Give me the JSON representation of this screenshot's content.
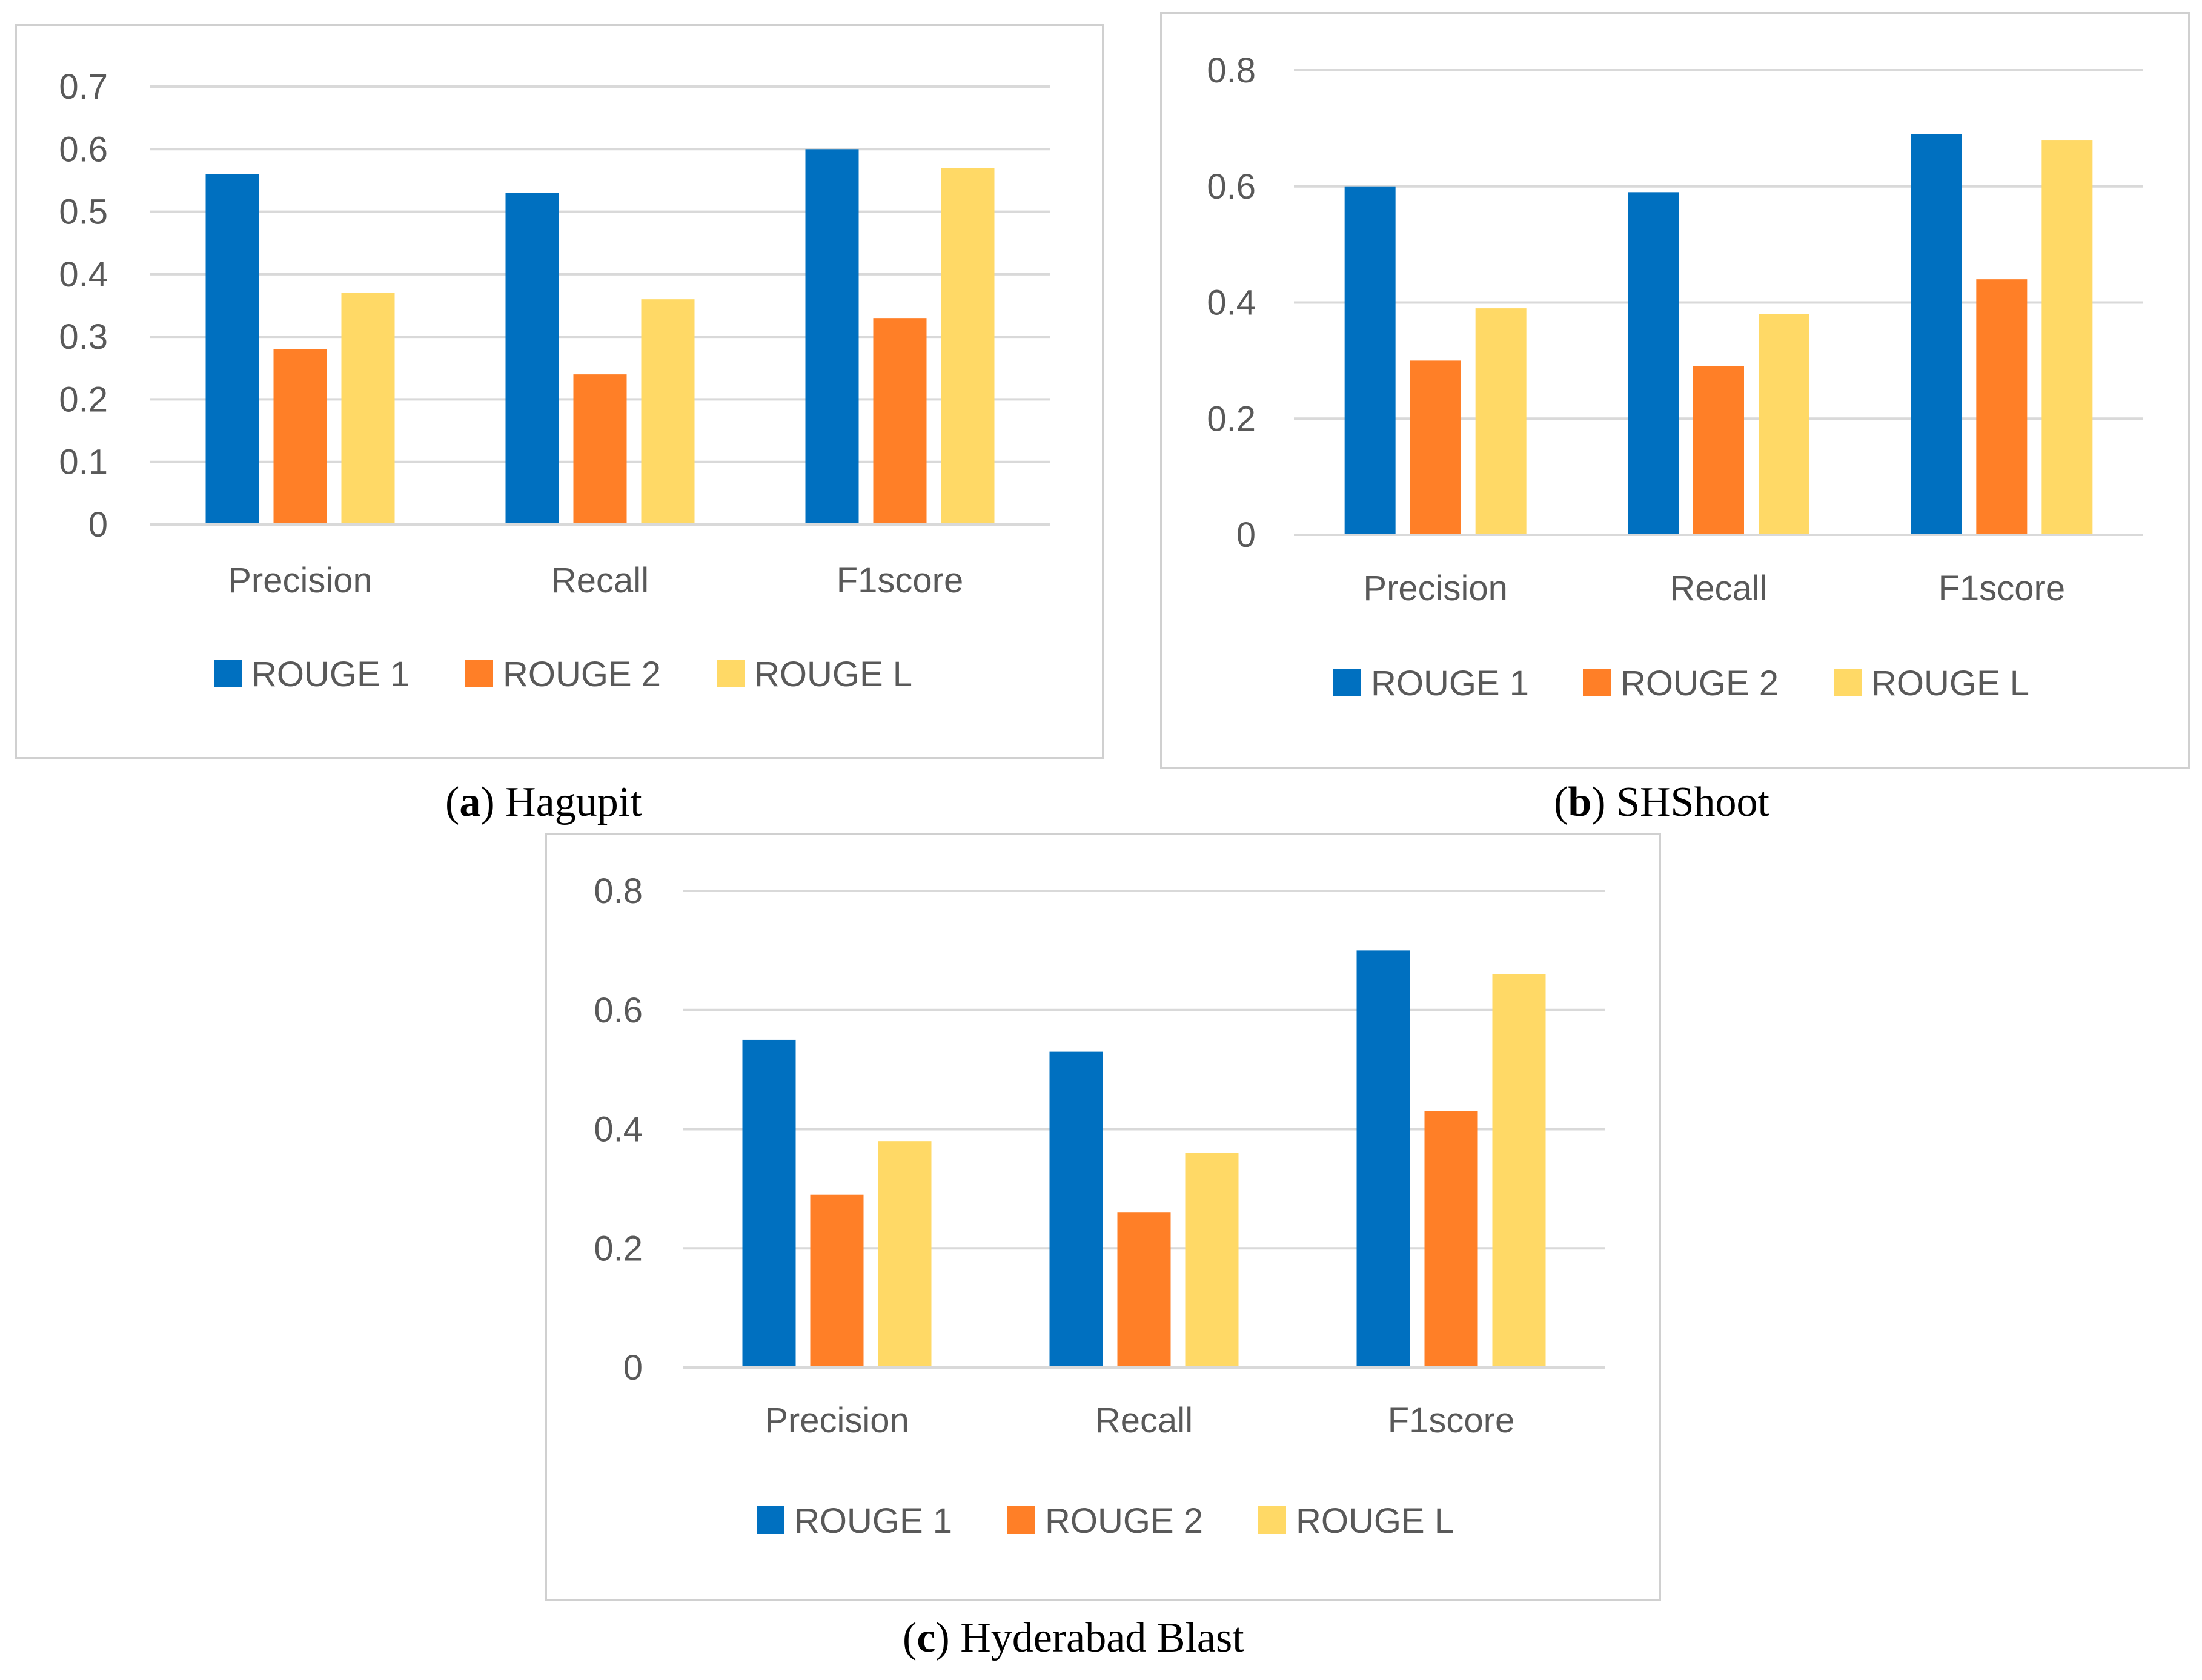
{
  "colors": {
    "rouge1": "#0070C0",
    "rouge2": "#FF7F27",
    "rougeL": "#FFD966",
    "grid": "#d9d9d9",
    "axis_text": "#595959"
  },
  "chart_data": [
    {
      "type": "bar",
      "title": "",
      "caption_letter": "a",
      "caption_title": "Hagupit",
      "categories": [
        "Precision",
        "Recall",
        "F1score"
      ],
      "ylim": [
        0,
        0.7
      ],
      "yticks": [
        0,
        0.1,
        0.2,
        0.3,
        0.4,
        0.5,
        0.6,
        0.7
      ],
      "ytick_labels": [
        "0",
        "0.1",
        "0.2",
        "0.3",
        "0.4",
        "0.5",
        "0.6",
        "0.7"
      ],
      "xlabel": "",
      "ylabel": "",
      "legend": "bottom",
      "series": [
        {
          "name": "ROUGE 1",
          "values": [
            0.56,
            0.53,
            0.6
          ]
        },
        {
          "name": "ROUGE 2",
          "values": [
            0.28,
            0.24,
            0.33
          ]
        },
        {
          "name": "ROUGE L",
          "values": [
            0.37,
            0.36,
            0.57
          ]
        }
      ]
    },
    {
      "type": "bar",
      "title": "",
      "caption_letter": "b",
      "caption_title": "SHShoot",
      "categories": [
        "Precision",
        "Recall",
        "F1score"
      ],
      "ylim": [
        0,
        0.8
      ],
      "yticks": [
        0,
        0.2,
        0.4,
        0.6,
        0.8
      ],
      "ytick_labels": [
        "0",
        "0.2",
        "0.4",
        "0.6",
        "0.8"
      ],
      "xlabel": "",
      "ylabel": "",
      "legend": "bottom",
      "series": [
        {
          "name": "ROUGE 1",
          "values": [
            0.6,
            0.59,
            0.69
          ]
        },
        {
          "name": "ROUGE 2",
          "values": [
            0.3,
            0.29,
            0.44
          ]
        },
        {
          "name": "ROUGE L",
          "values": [
            0.39,
            0.38,
            0.68
          ]
        }
      ]
    },
    {
      "type": "bar",
      "title": "",
      "caption_letter": "c",
      "caption_title": "Hyderabad Blast",
      "categories": [
        "Precision",
        "Recall",
        "F1score"
      ],
      "ylim": [
        0,
        0.8
      ],
      "yticks": [
        0,
        0.2,
        0.4,
        0.6,
        0.8
      ],
      "ytick_labels": [
        "0",
        "0.2",
        "0.4",
        "0.6",
        "0.8"
      ],
      "xlabel": "",
      "ylabel": "",
      "legend": "bottom",
      "series": [
        {
          "name": "ROUGE 1",
          "values": [
            0.55,
            0.53,
            0.7
          ]
        },
        {
          "name": "ROUGE 2",
          "values": [
            0.29,
            0.26,
            0.43
          ]
        },
        {
          "name": "ROUGE L",
          "values": [
            0.38,
            0.36,
            0.66
          ]
        }
      ]
    }
  ]
}
